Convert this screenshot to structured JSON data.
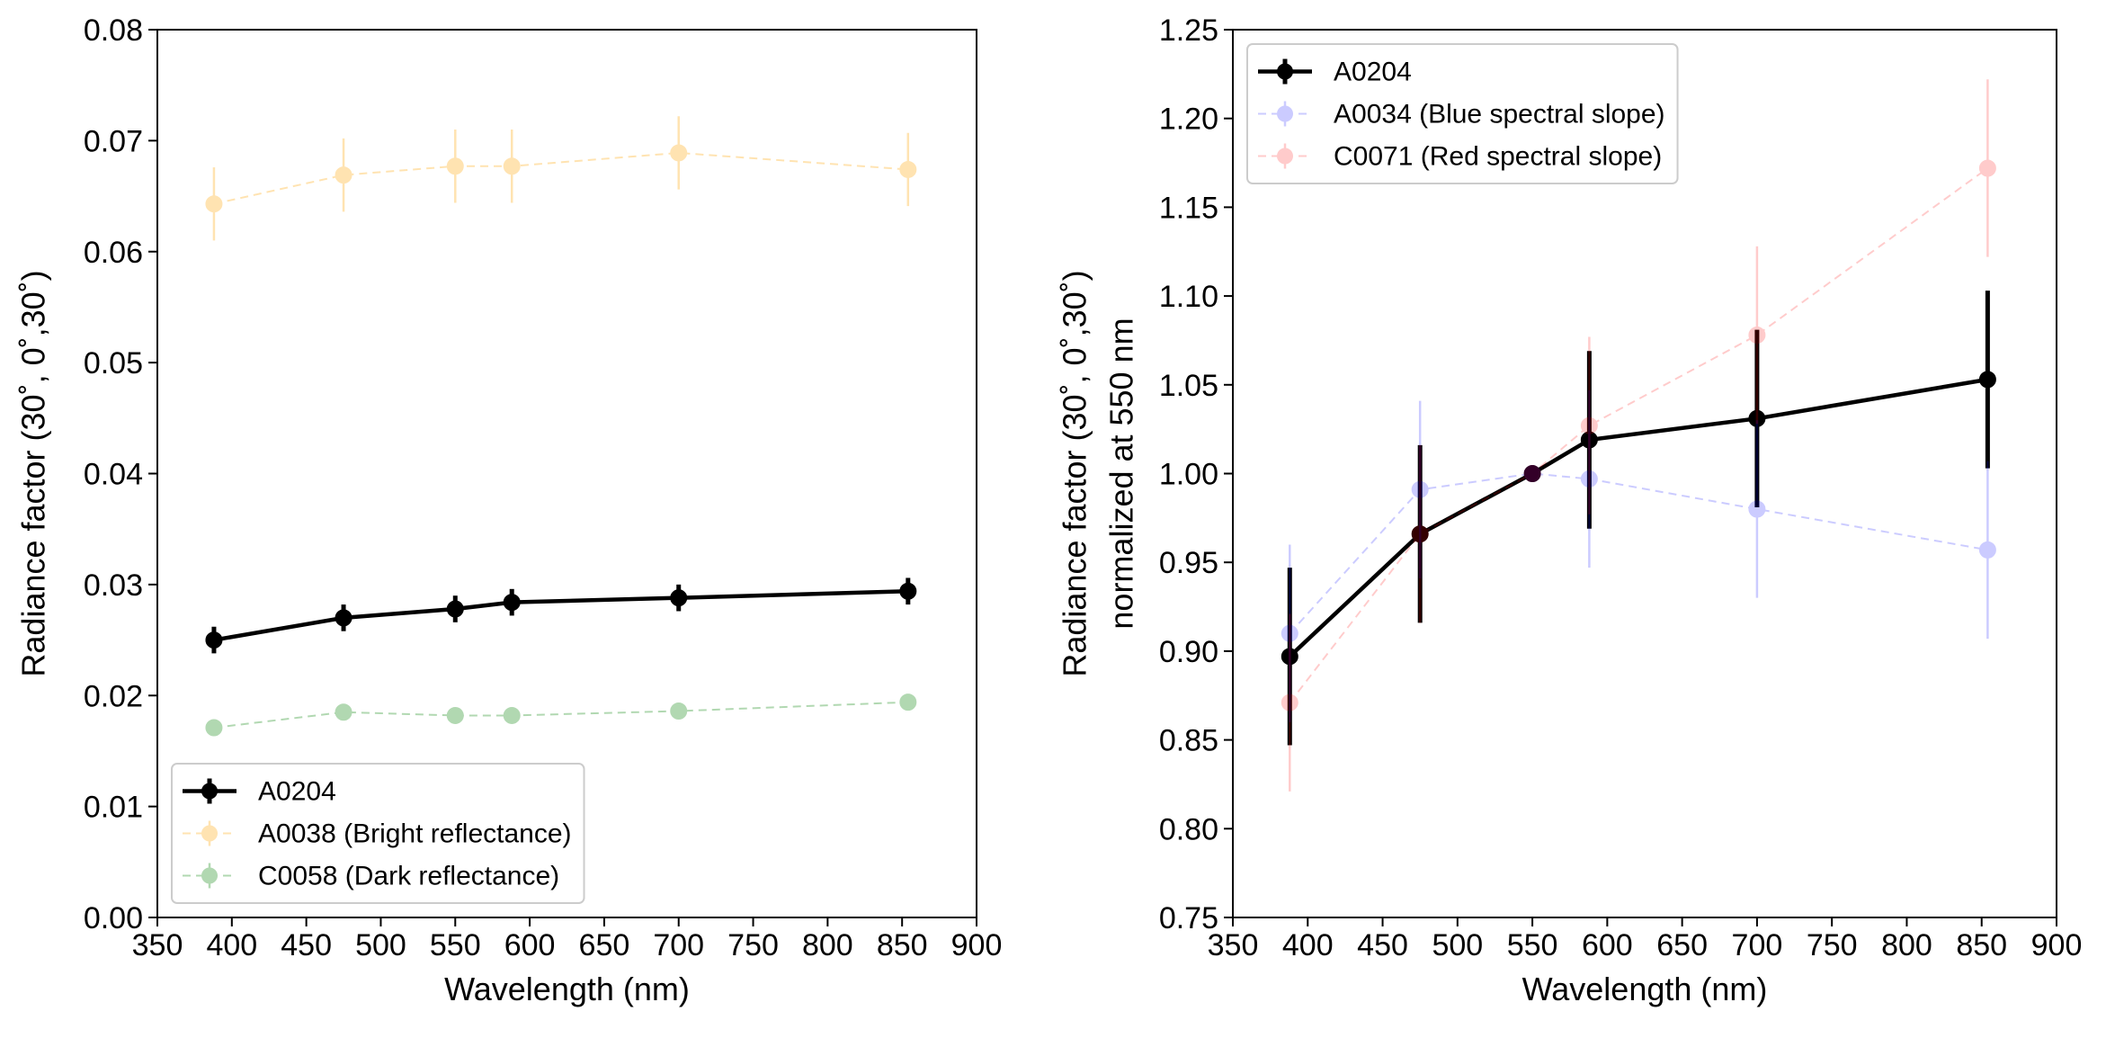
{
  "chart_data": [
    {
      "type": "line",
      "xlabel": "Wavelength (nm)",
      "ylabel": [
        "Radiance factor (30˚, 0˚,30˚)"
      ],
      "x": [
        388,
        475,
        550,
        588,
        700,
        854
      ],
      "xlim": [
        350,
        900
      ],
      "xticks": [
        350,
        400,
        450,
        500,
        550,
        600,
        650,
        700,
        750,
        800,
        850,
        900
      ],
      "ylim": [
        0,
        0.08
      ],
      "yticks": [
        {
          "value": 0,
          "label": "0.00"
        },
        0.01,
        0.02,
        0.03,
        0.04,
        0.05,
        0.06,
        0.07,
        0.08
      ],
      "legend": "lower left",
      "series": [
        {
          "name": "A0204",
          "color": "#000000",
          "alpha": 1,
          "linestyle": "solid",
          "values": [
            0.025,
            0.027,
            0.0278,
            0.0284,
            0.0288,
            0.0294
          ],
          "errors": [
            0.0012,
            0.0012,
            0.0012,
            0.0012,
            0.0012,
            0.0012
          ]
        },
        {
          "name": "A0038 (Bright reflectance)",
          "color": "#ffa500",
          "alpha": 0.3,
          "linestyle": "dashed",
          "values": [
            0.0643,
            0.0669,
            0.0677,
            0.0677,
            0.0689,
            0.0674
          ],
          "errors": [
            0.0033,
            0.0033,
            0.0033,
            0.0033,
            0.0033,
            0.0033
          ]
        },
        {
          "name": "C0058 (Dark reflectance)",
          "color": "#008000",
          "alpha": 0.3,
          "linestyle": "dashed",
          "values": [
            0.0171,
            0.0185,
            0.0182,
            0.0182,
            0.0186,
            0.0194
          ],
          "errors": [
            0.0007,
            0.0007,
            0.0007,
            0.0007,
            0.0007,
            0.0007
          ]
        }
      ]
    },
    {
      "type": "line",
      "xlabel": "Wavelength (nm)",
      "ylabel": [
        "Radiance factor (30˚, 0˚,30˚)",
        "normalized at 550 nm"
      ],
      "x": [
        388,
        475,
        550,
        588,
        700,
        854
      ],
      "xlim": [
        350,
        900
      ],
      "xticks": [
        350,
        400,
        450,
        500,
        550,
        600,
        650,
        700,
        750,
        800,
        850,
        900
      ],
      "ylim": [
        0.75,
        1.25
      ],
      "yticks": [
        0.75,
        {
          "value": 0.8,
          "label": "0.80"
        },
        0.85,
        {
          "value": 0.9,
          "label": "0.90"
        },
        0.95,
        {
          "value": 1,
          "label": "1.00"
        },
        1.05,
        {
          "value": 1.1,
          "label": "1.10"
        },
        1.15,
        {
          "value": 1.2,
          "label": "1.20"
        },
        1.25
      ],
      "legend": "upper left",
      "series": [
        {
          "name": "A0204",
          "color": "#000000",
          "alpha": 1,
          "linestyle": "solid",
          "values": [
            0.897,
            0.966,
            1.0,
            1.019,
            1.031,
            1.053
          ],
          "errors": [
            0.05,
            0.05,
            0,
            0.05,
            0.05,
            0.05
          ]
        },
        {
          "name": "A0034 (Blue spectral slope)",
          "color": "#0000ff",
          "alpha": 0.2,
          "linestyle": "dashed",
          "values": [
            0.91,
            0.991,
            1.0,
            0.997,
            0.98,
            0.957
          ],
          "errors": [
            0.05,
            0.05,
            0,
            0.05,
            0.05,
            0.05
          ]
        },
        {
          "name": "C0071 (Red spectral slope)",
          "color": "#ff0000",
          "alpha": 0.2,
          "linestyle": "dashed",
          "values": [
            0.871,
            0.966,
            1.0,
            1.027,
            1.078,
            1.172
          ],
          "errors": [
            0.05,
            0.05,
            0,
            0.05,
            0.05,
            0.05
          ]
        }
      ]
    }
  ]
}
